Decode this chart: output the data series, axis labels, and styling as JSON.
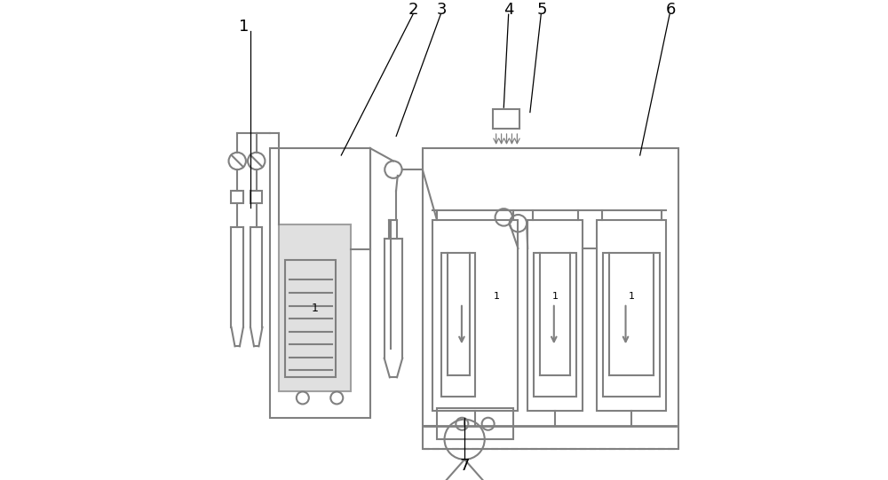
{
  "bg_color": "#ffffff",
  "line_color": "#808080",
  "line_width": 1.5,
  "thin_line": 1.0
}
